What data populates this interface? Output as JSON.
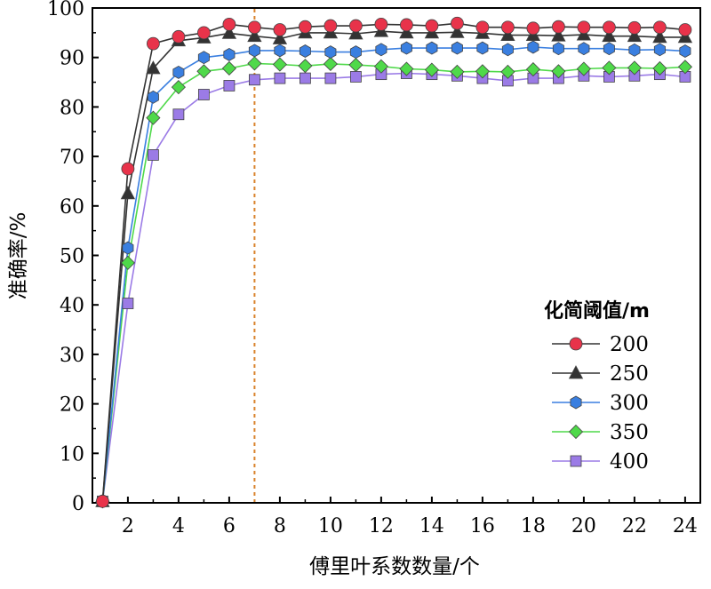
{
  "chart_data": {
    "type": "line",
    "xlabel": "傅里叶系数数量/个",
    "ylabel": "准确率/%",
    "xlim": [
      0.6,
      24.6
    ],
    "ylim": [
      0,
      100
    ],
    "xticks": [
      2,
      4,
      6,
      8,
      10,
      12,
      14,
      16,
      18,
      20,
      22,
      24
    ],
    "yticks": [
      0,
      10,
      20,
      30,
      40,
      50,
      60,
      70,
      80,
      90,
      100
    ],
    "reference_line_x": 7,
    "legend_title": "化简阈值/m",
    "legend_position": "center-right",
    "x": [
      1,
      2,
      3,
      4,
      5,
      6,
      7,
      8,
      9,
      10,
      11,
      12,
      13,
      14,
      15,
      16,
      17,
      18,
      19,
      20,
      21,
      22,
      23,
      24
    ],
    "series": [
      {
        "name": "200",
        "color": "#e8334a",
        "marker": "circle",
        "values": [
          0.3,
          67.5,
          92.8,
          94.2,
          95.0,
          96.7,
          96.1,
          95.6,
          96.2,
          96.4,
          96.4,
          96.7,
          96.6,
          96.4,
          96.9,
          96.1,
          96.1,
          95.9,
          96.2,
          96.1,
          96.1,
          96.0,
          96.1,
          95.6
        ]
      },
      {
        "name": "250",
        "color": "#333333",
        "marker": "triangle",
        "values": [
          0.3,
          62.5,
          87.8,
          93.4,
          94.0,
          94.9,
          94.3,
          93.8,
          95.0,
          95.0,
          94.8,
          95.3,
          95.0,
          95.0,
          95.1,
          94.9,
          94.5,
          94.5,
          94.4,
          94.6,
          94.3,
          94.3,
          94.1,
          94.1
        ]
      },
      {
        "name": "300",
        "color": "#3a7fe0",
        "marker": "hexagon",
        "values": [
          0.3,
          51.5,
          82.0,
          87.0,
          90.0,
          90.6,
          91.4,
          91.4,
          91.3,
          91.1,
          91.1,
          91.6,
          91.9,
          91.9,
          91.9,
          91.9,
          91.6,
          92.1,
          91.8,
          91.8,
          91.8,
          91.5,
          91.6,
          91.3
        ]
      },
      {
        "name": "350",
        "color": "#4fd94a",
        "marker": "diamond",
        "values": [
          0.3,
          48.5,
          77.8,
          84.0,
          87.2,
          87.8,
          88.8,
          88.6,
          88.3,
          88.7,
          88.5,
          88.2,
          87.7,
          87.5,
          87.1,
          87.2,
          87.1,
          87.6,
          87.2,
          87.7,
          87.9,
          87.9,
          87.8,
          88.1
        ]
      },
      {
        "name": "400",
        "color": "#9b7be6",
        "marker": "square",
        "values": [
          0.3,
          40.3,
          70.3,
          78.5,
          82.5,
          84.3,
          85.5,
          85.8,
          85.8,
          85.8,
          86.1,
          86.6,
          86.8,
          86.6,
          86.3,
          85.8,
          85.3,
          85.8,
          85.8,
          86.3,
          86.1,
          86.3,
          86.6,
          86.1
        ]
      }
    ]
  }
}
